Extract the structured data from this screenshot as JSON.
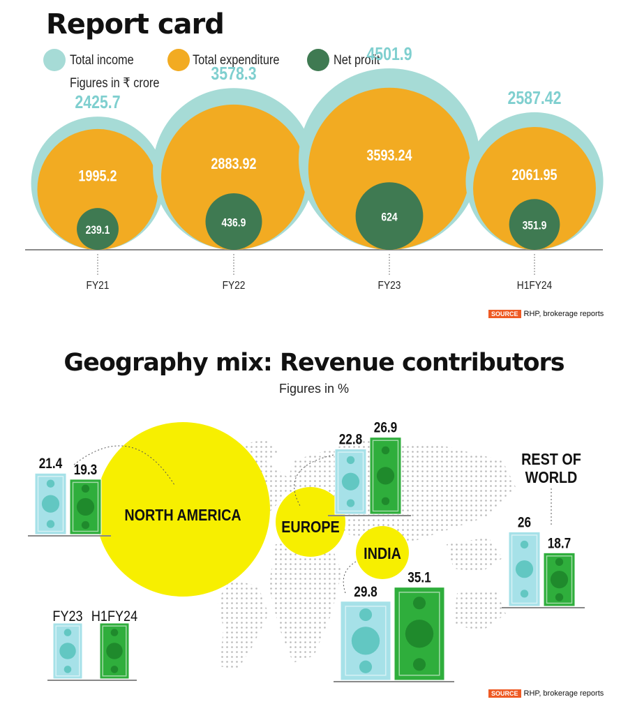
{
  "report_card": {
    "title": "Report card",
    "legend": [
      {
        "label": "Total income",
        "color": "#a6dbd6"
      },
      {
        "label": "Total expenditure",
        "color": "#f2ab22"
      },
      {
        "label": "Net profit",
        "color": "#3f7a52"
      }
    ],
    "units_note": "Figures in ₹ crore",
    "source_tag": "SOURCE",
    "source_text": "RHP, brokerage reports"
  },
  "geography": {
    "title": "Geography mix: Revenue contributors",
    "units_note": "Figures in %",
    "region_labels": {
      "north_america": "NORTH AMERICA",
      "europe": "EUROPE",
      "india": "INDIA",
      "rest_of_world_line1": "REST OF",
      "rest_of_world_line2": "WORLD"
    },
    "legend_fy23": "FY23",
    "legend_h1fy24": "H1FY24",
    "colors": {
      "fy23": "#a6e1e8",
      "h1fy24": "#2fae3c",
      "bubble": "#f7ef00"
    },
    "source_tag": "SOURCE",
    "source_text": "RHP, brokerage reports"
  },
  "chart_data": [
    {
      "type": "bubble",
      "title": "Report card",
      "subtitle": "Figures in ₹ crore",
      "categories": [
        "FY21",
        "FY22",
        "FY23",
        "H1FY24"
      ],
      "series": [
        {
          "name": "Total income",
          "values": [
            2425.7,
            3578.3,
            4501.9,
            2587.42
          ],
          "labels": [
            "2425.7",
            "3578.3",
            "4501.9",
            "2587.42"
          ]
        },
        {
          "name": "Total expenditure",
          "values": [
            1995.2,
            2883.92,
            3593.24,
            2061.95
          ],
          "labels": [
            "1995.2",
            "2883.92",
            "3593.24",
            "2061.95"
          ]
        },
        {
          "name": "Net profit",
          "values": [
            239.1,
            436.9,
            624,
            351.9
          ],
          "labels": [
            "239.1",
            "436.9",
            "624",
            "351.9"
          ]
        }
      ]
    },
    {
      "type": "bar",
      "title": "Geography mix: Revenue contributors",
      "subtitle": "Figures in %",
      "categories": [
        "North America",
        "Europe",
        "India",
        "Rest of World"
      ],
      "series": [
        {
          "name": "FY23",
          "values": [
            21.4,
            22.8,
            29.8,
            26
          ],
          "labels": [
            "21.4",
            "22.8",
            "29.8",
            "26"
          ]
        },
        {
          "name": "H1FY24",
          "values": [
            19.3,
            26.9,
            35.1,
            18.7
          ],
          "labels": [
            "19.3",
            "26.9",
            "35.1",
            "18.7"
          ]
        }
      ]
    }
  ]
}
